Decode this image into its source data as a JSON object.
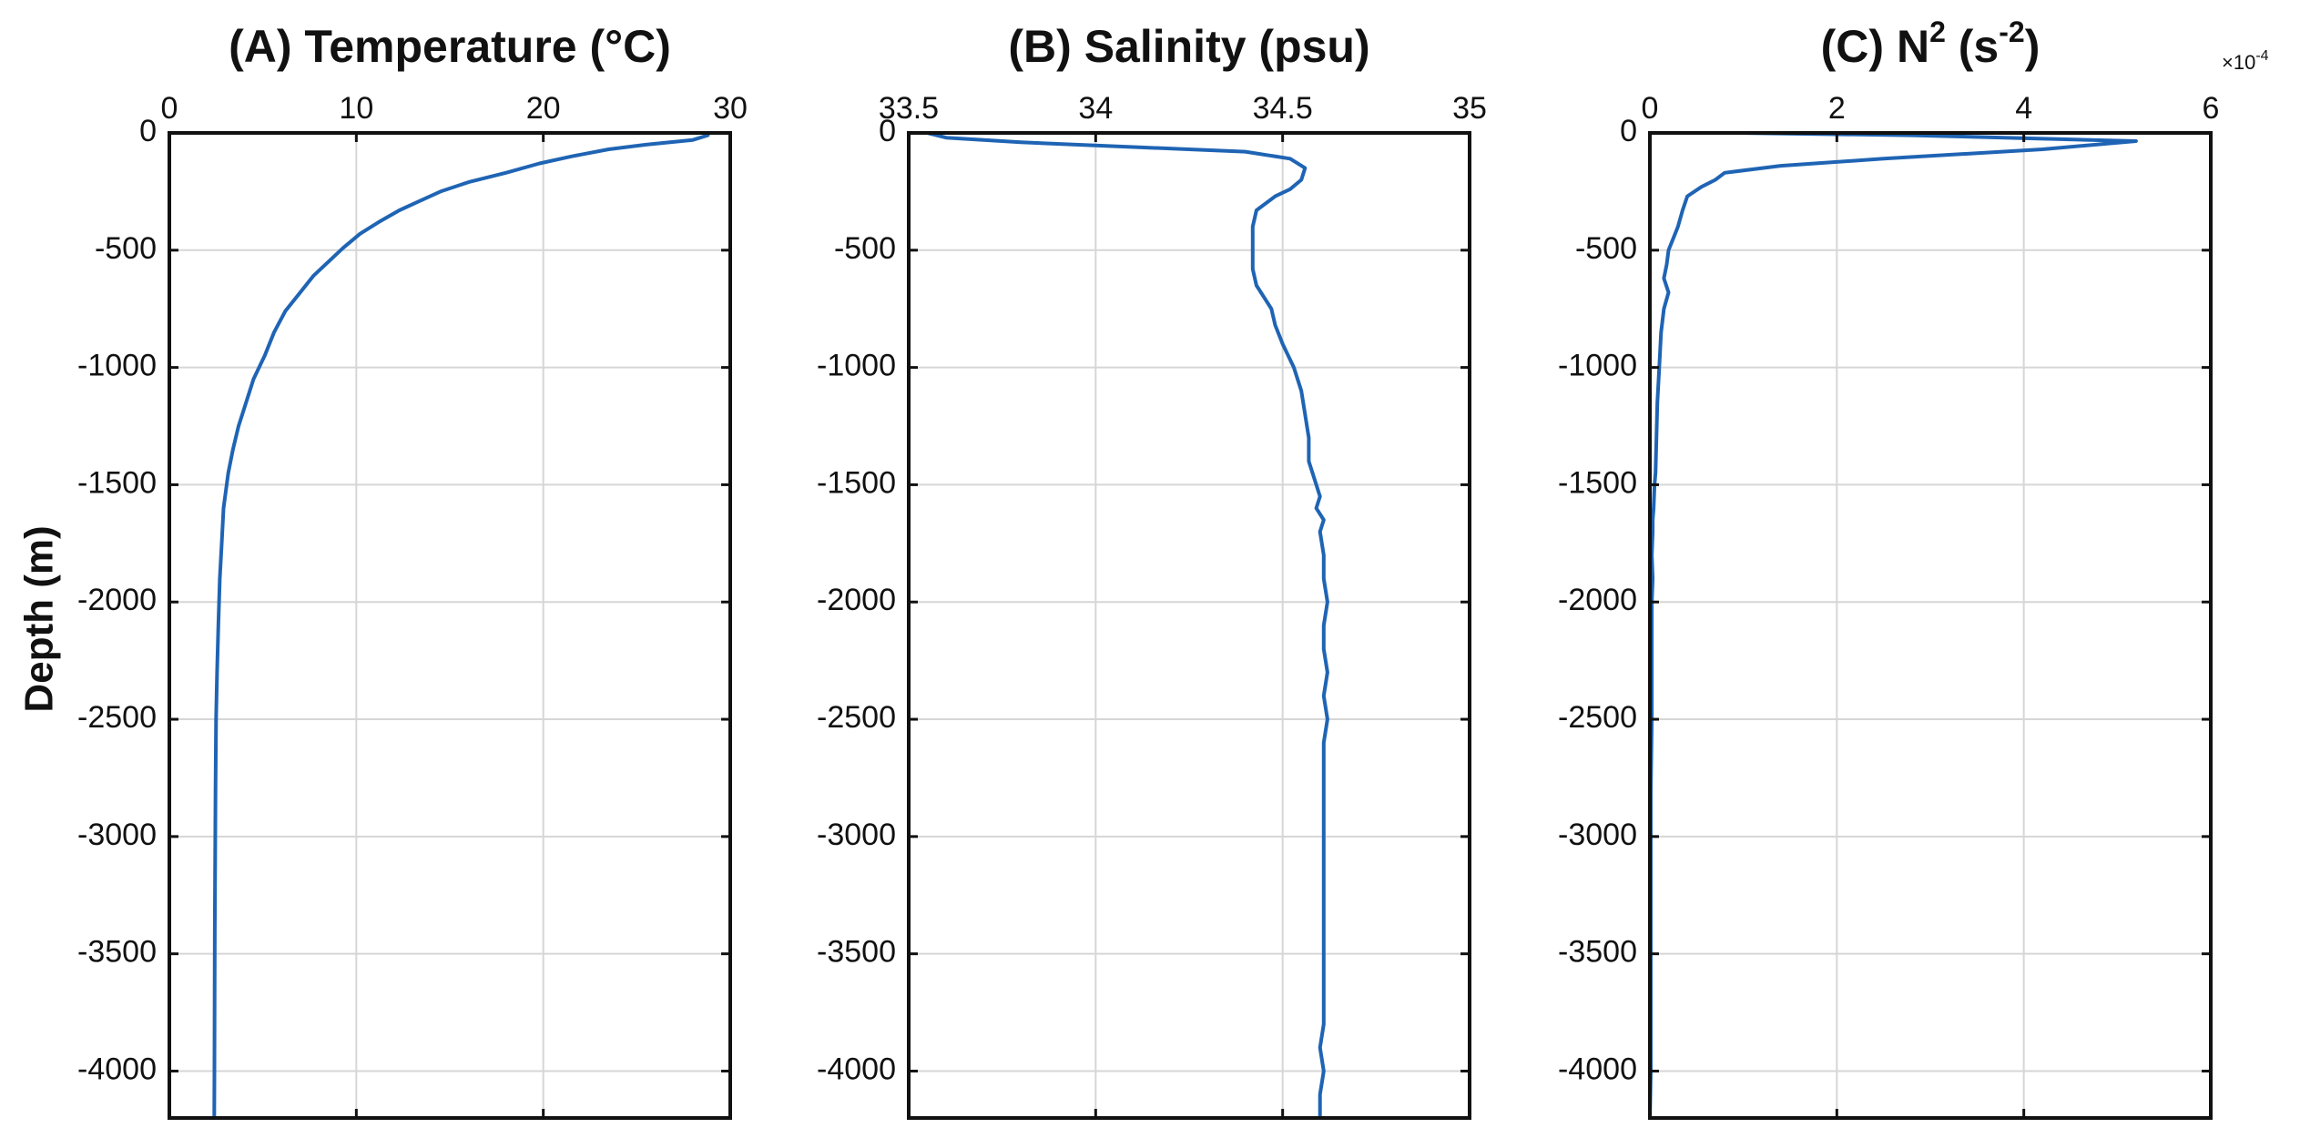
{
  "figure": {
    "ylabel": "Depth (m)"
  },
  "chart_data": [
    {
      "type": "line",
      "panel": "A",
      "title": "(A) Temperature (°C)",
      "title_parts": {
        "main": "(A) Temperature (°C)"
      },
      "xlim": [
        0,
        30
      ],
      "ylim": [
        -4200,
        0
      ],
      "x_ticks": [
        0,
        10,
        20,
        30
      ],
      "x_tick_labels": [
        "0",
        "10",
        "20",
        "30"
      ],
      "y_ticks": [
        0,
        -500,
        -1000,
        -1500,
        -2000,
        -2500,
        -3000,
        -3500,
        -4000
      ],
      "y_tick_labels": [
        "0",
        "-500",
        "-1000",
        "-1500",
        "-2000",
        "-2500",
        "-3000",
        "-3500",
        "-4000"
      ],
      "x_axis_position": "top",
      "grid": true,
      "line_color": "#1f64b4",
      "series": [
        {
          "x": [
            28.8,
            28.0,
            25.5,
            23.5,
            21.5,
            19.8,
            18.0,
            16.0,
            14.5,
            13.4,
            12.3,
            11.2,
            10.2,
            9.3,
            8.5,
            7.7,
            7.0,
            6.2,
            5.6,
            5.1,
            4.5,
            4.1,
            3.7,
            3.4,
            3.15,
            2.9,
            2.8,
            2.7,
            2.62,
            2.55,
            2.5,
            2.47,
            2.45,
            2.43,
            2.42,
            2.41,
            2.4
          ],
          "y": [
            -10,
            -30,
            -50,
            -70,
            -100,
            -130,
            -170,
            -210,
            -250,
            -290,
            -330,
            -380,
            -430,
            -490,
            -550,
            -610,
            -680,
            -760,
            -850,
            -950,
            -1050,
            -1150,
            -1250,
            -1350,
            -1450,
            -1600,
            -1750,
            -1900,
            -2100,
            -2300,
            -2500,
            -2800,
            -3100,
            -3400,
            -3700,
            -4000,
            -4200
          ]
        }
      ]
    },
    {
      "type": "line",
      "panel": "B",
      "title": "(B) Salinity (psu)",
      "title_parts": {
        "main": "(B) Salinity (psu)"
      },
      "xlim": [
        33.5,
        35
      ],
      "ylim": [
        -4200,
        0
      ],
      "x_ticks": [
        33.5,
        34,
        34.5,
        35
      ],
      "x_tick_labels": [
        "33.5",
        "34",
        "34.5",
        "35"
      ],
      "y_ticks": [
        0,
        -500,
        -1000,
        -1500,
        -2000,
        -2500,
        -3000,
        -3500,
        -4000
      ],
      "y_tick_labels": [
        "0",
        "-500",
        "-1000",
        "-1500",
        "-2000",
        "-2500",
        "-3000",
        "-3500",
        "-4000"
      ],
      "x_axis_position": "top",
      "grid": true,
      "line_color": "#1f64b4",
      "series": [
        {
          "x": [
            33.55,
            33.6,
            33.8,
            34.1,
            34.4,
            34.52,
            34.56,
            34.55,
            34.52,
            34.48,
            34.43,
            34.42,
            34.42,
            34.42,
            34.43,
            34.45,
            34.47,
            34.48,
            34.5,
            34.53,
            34.55,
            34.56,
            34.57,
            34.57,
            34.58,
            34.59,
            34.6,
            34.59,
            34.61,
            34.6,
            34.61,
            34.61,
            34.62,
            34.61,
            34.61,
            34.62,
            34.61,
            34.62,
            34.61,
            34.61,
            34.61,
            34.61,
            34.61,
            34.61,
            34.61,
            34.6,
            34.61,
            34.6,
            34.6
          ],
          "y": [
            0,
            -20,
            -40,
            -60,
            -80,
            -110,
            -150,
            -200,
            -240,
            -270,
            -330,
            -400,
            -500,
            -580,
            -650,
            -700,
            -750,
            -820,
            -900,
            -1000,
            -1100,
            -1200,
            -1300,
            -1400,
            -1450,
            -1500,
            -1550,
            -1600,
            -1650,
            -1700,
            -1800,
            -1900,
            -2000,
            -2100,
            -2200,
            -2300,
            -2400,
            -2500,
            -2600,
            -2800,
            -3000,
            -3200,
            -3400,
            -3600,
            -3800,
            -3900,
            -4000,
            -4100,
            -4200
          ]
        }
      ]
    },
    {
      "type": "line",
      "panel": "C",
      "title": "(C) N2 (s-2)",
      "title_parts": {
        "prefix": "(C) N",
        "sup1": "2",
        "middle": " (s",
        "sup2": "-2",
        "suffix": ")"
      },
      "exponent_label": {
        "base": "×10",
        "power": "-4"
      },
      "xlim": [
        0,
        6
      ],
      "ylim": [
        -4200,
        0
      ],
      "x_ticks": [
        0,
        2,
        4,
        6
      ],
      "x_tick_labels": [
        "0",
        "2",
        "4",
        "6"
      ],
      "y_ticks": [
        0,
        -500,
        -1000,
        -1500,
        -2000,
        -2500,
        -3000,
        -3500,
        -4000
      ],
      "y_tick_labels": [
        "0",
        "-500",
        "-1000",
        "-1500",
        "-2000",
        "-2500",
        "-3000",
        "-3500",
        "-4000"
      ],
      "x_axis_position": "top",
      "grid": true,
      "line_color": "#1f64b4",
      "series": [
        {
          "x": [
            0.95,
            2.8,
            5.2,
            4.2,
            2.5,
            1.4,
            0.8,
            0.7,
            0.55,
            0.4,
            0.35,
            0.3,
            0.25,
            0.2,
            0.18,
            0.15,
            0.2,
            0.15,
            0.12,
            0.1,
            0.08,
            0.07,
            0.06,
            0.05,
            0.04,
            0.03,
            0.03,
            0.02,
            0.03,
            0.02,
            0.02,
            0.02,
            0.01,
            0.01,
            0.01,
            0.01,
            0.0
          ],
          "y": [
            0,
            -10,
            -35,
            -70,
            -110,
            -140,
            -170,
            -200,
            -230,
            -270,
            -330,
            -400,
            -450,
            -500,
            -560,
            -620,
            -680,
            -750,
            -850,
            -1000,
            -1150,
            -1300,
            -1450,
            -1500,
            -1600,
            -1650,
            -1700,
            -1800,
            -1900,
            -2000,
            -2200,
            -2500,
            -2800,
            -3200,
            -3600,
            -4000,
            -4200
          ]
        }
      ]
    }
  ]
}
